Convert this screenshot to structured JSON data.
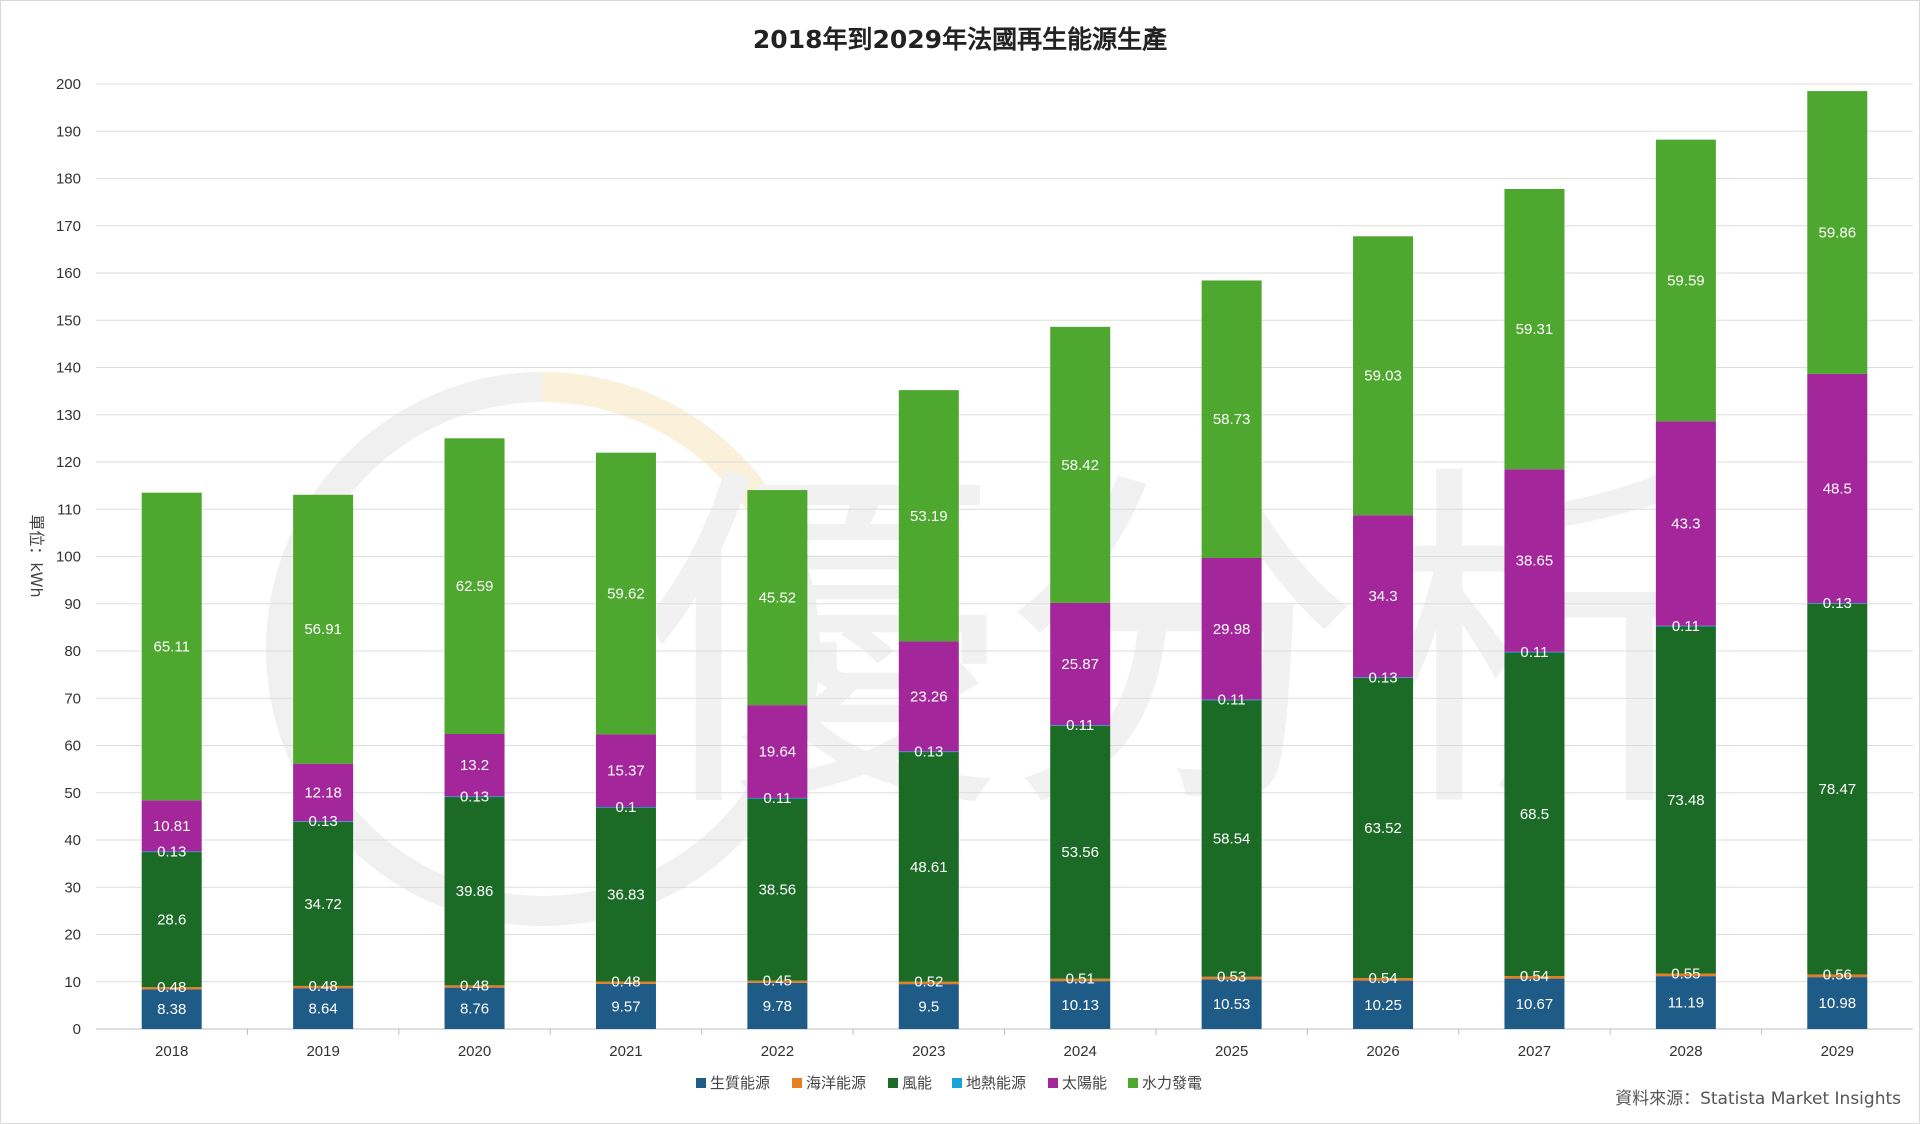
{
  "chart_data": {
    "type": "bar",
    "stacked": true,
    "title": "2018年到2029年法國再生能源生產",
    "ylabel": "單位：kWh",
    "xlabel": "",
    "ylim": [
      0,
      200
    ],
    "yticks": [
      0,
      10,
      20,
      30,
      40,
      50,
      60,
      70,
      80,
      90,
      100,
      110,
      120,
      130,
      140,
      150,
      160,
      170,
      180,
      190,
      200
    ],
    "grid": true,
    "legend_position": "bottom",
    "categories": [
      "2018",
      "2019",
      "2020",
      "2021",
      "2022",
      "2023",
      "2024",
      "2025",
      "2026",
      "2027",
      "2028",
      "2029"
    ],
    "series": [
      {
        "name": "生質能源",
        "color": "#1f5b87",
        "values": [
          8.38,
          8.64,
          8.76,
          9.57,
          9.78,
          9.5,
          10.13,
          10.53,
          10.25,
          10.67,
          11.19,
          10.98
        ]
      },
      {
        "name": "海洋能源",
        "color": "#e67e22",
        "values": [
          0.48,
          0.48,
          0.48,
          0.48,
          0.45,
          0.52,
          0.51,
          0.53,
          0.54,
          0.54,
          0.55,
          0.56
        ]
      },
      {
        "name": "風能",
        "color": "#1b6b27",
        "values": [
          28.6,
          34.72,
          39.86,
          36.83,
          38.56,
          48.61,
          53.56,
          58.54,
          63.52,
          68.5,
          73.48,
          78.47
        ]
      },
      {
        "name": "地熱能源",
        "color": "#1ba3d9",
        "values": [
          0.13,
          0.13,
          0.13,
          0.1,
          0.11,
          0.13,
          0.11,
          0.11,
          0.13,
          0.11,
          0.11,
          0.13
        ]
      },
      {
        "name": "太陽能",
        "color": "#a4269b",
        "values": [
          10.81,
          12.18,
          13.2,
          15.37,
          19.64,
          23.26,
          25.87,
          29.98,
          34.3,
          38.65,
          43.3,
          48.5
        ]
      },
      {
        "name": "水力發電",
        "color": "#4ea72e",
        "values": [
          65.11,
          56.91,
          62.59,
          59.62,
          45.52,
          53.19,
          58.42,
          58.73,
          59.03,
          59.31,
          59.59,
          59.86
        ]
      }
    ],
    "source": "資料來源：Statista Market Insights"
  },
  "watermark": {
    "text": "優分析",
    "color": "#eeeeee",
    "accent": "#fdf3dc"
  }
}
